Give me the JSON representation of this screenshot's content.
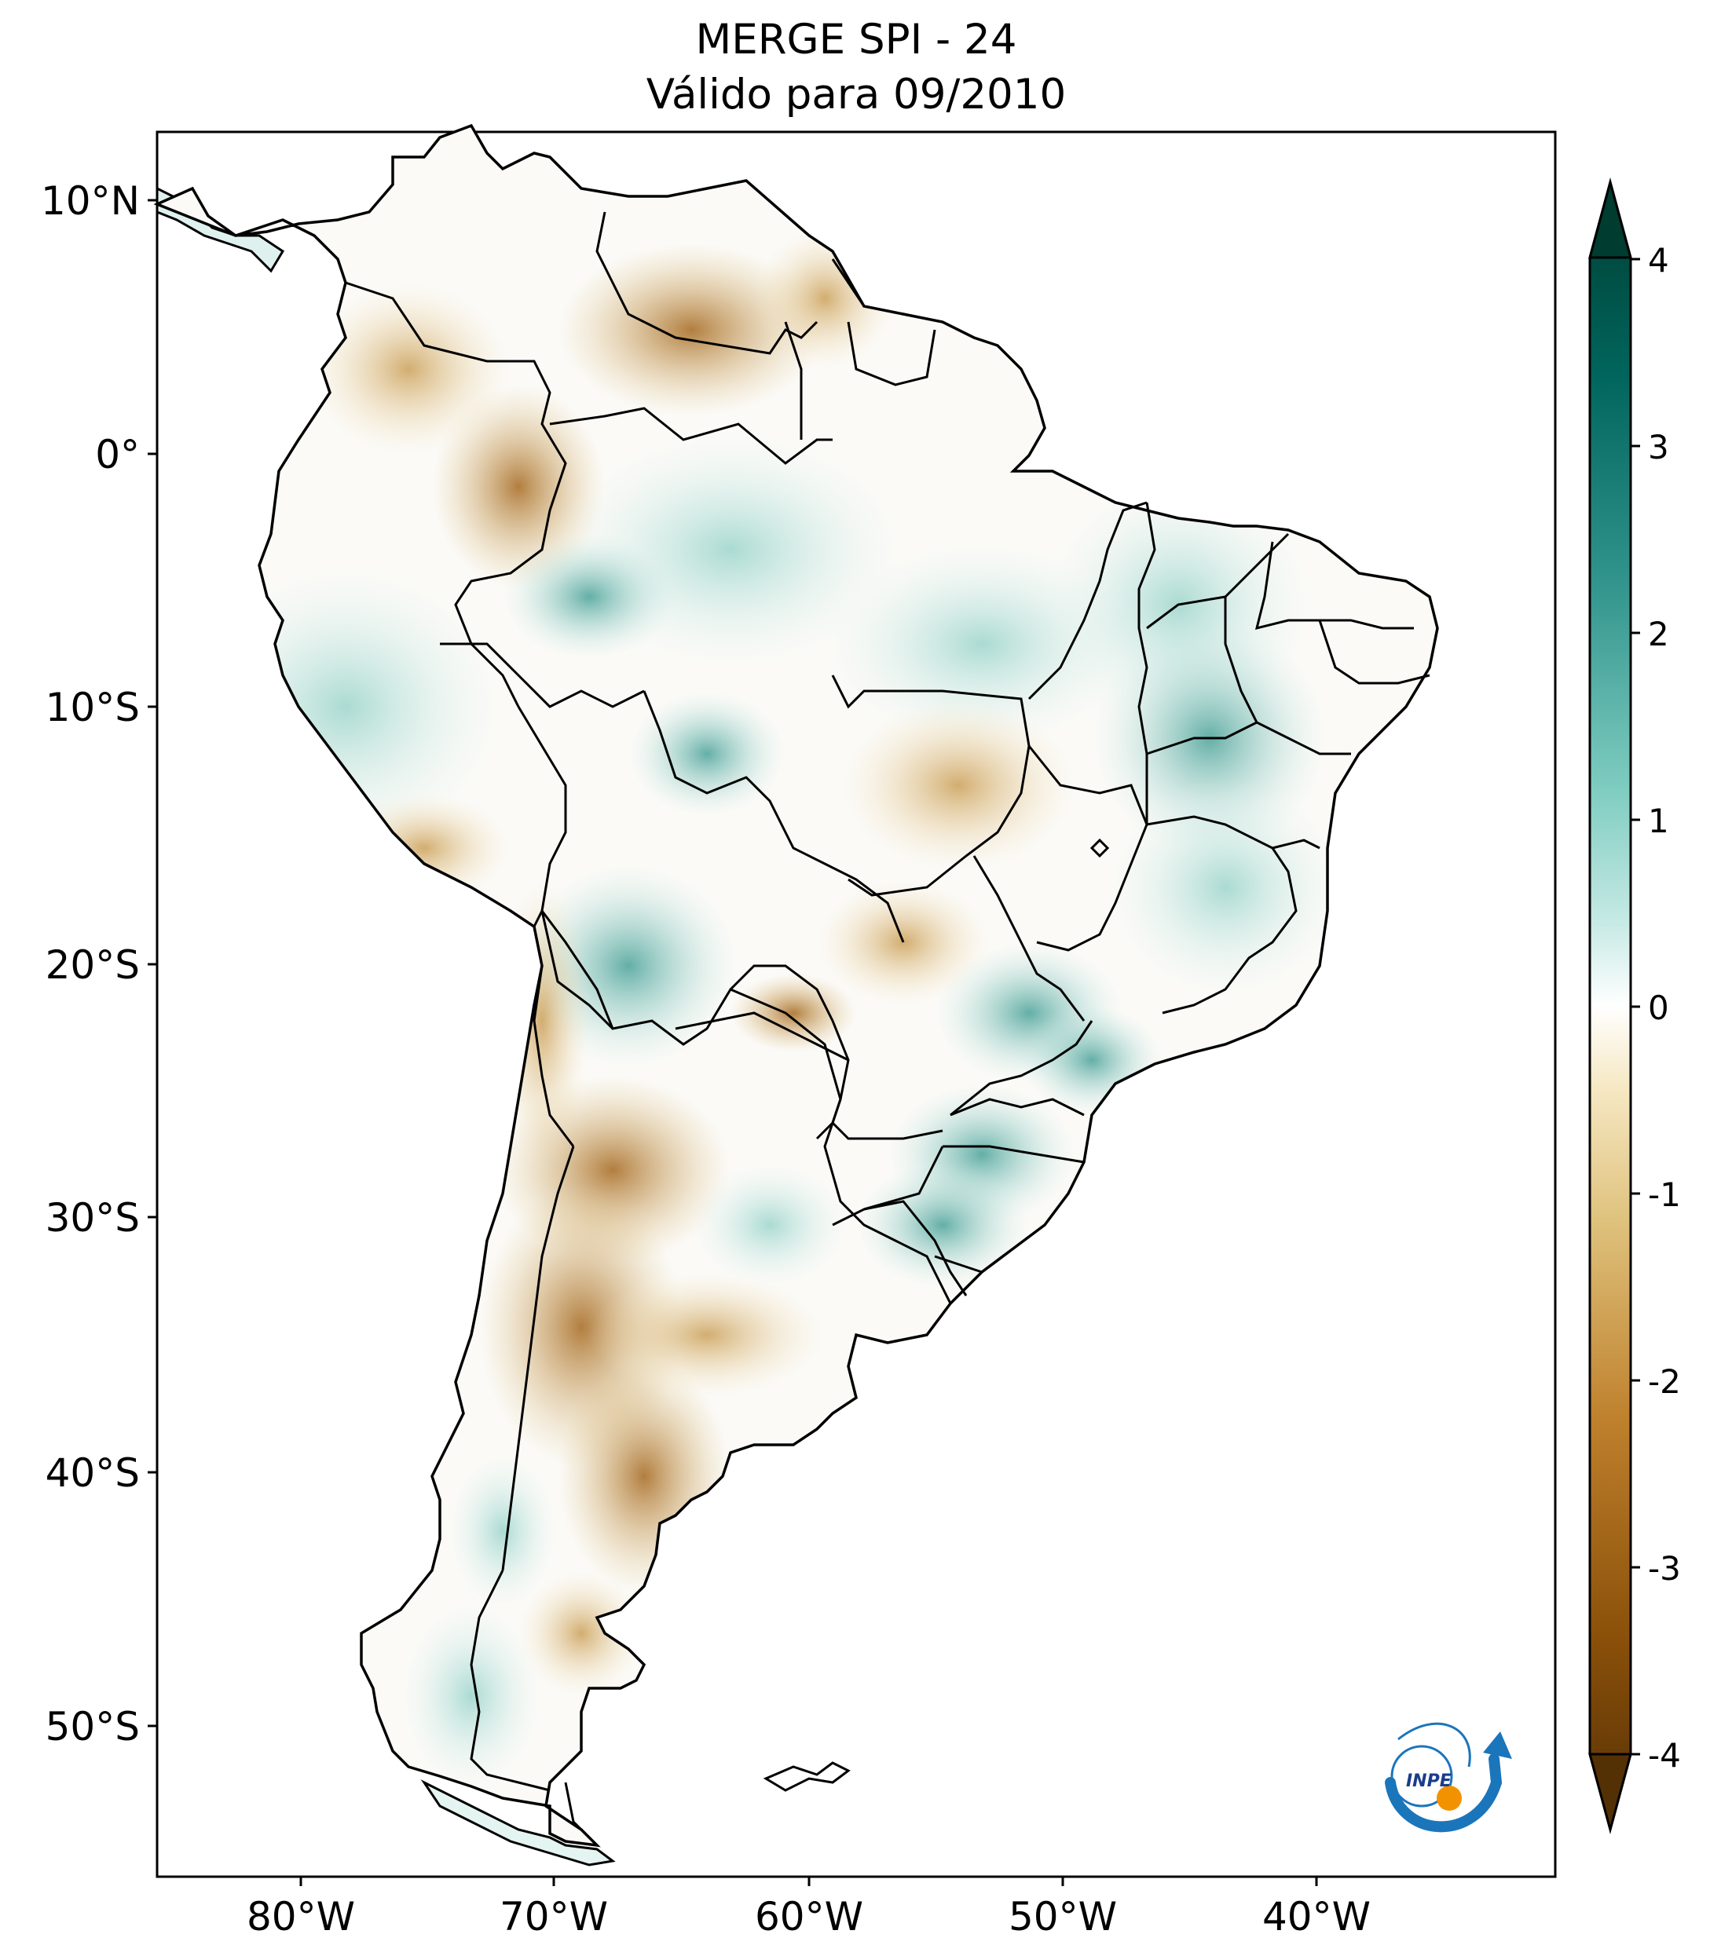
{
  "title": {
    "line1": "MERGE   SPI - 24",
    "line2": "Válido para 09/2010"
  },
  "map": {
    "region": "South America",
    "lat_ticks": [
      "10°N",
      "0°",
      "10°S",
      "20°S",
      "30°S",
      "40°S",
      "50°S"
    ],
    "lon_ticks": [
      "80°W",
      "70°W",
      "60°W",
      "50°W",
      "40°W"
    ],
    "colors": {
      "land_dry_strong": "#543005",
      "land_dry": "#bf812d",
      "land_dry_light": "#dfc27d",
      "neutral": "#ffffff",
      "land_wet_light": "#c7eae5",
      "land_wet": "#35978f",
      "land_wet_strong": "#003c30",
      "border": "#000000"
    }
  },
  "colorbar": {
    "labels": [
      "4",
      "3",
      "2",
      "1",
      "0",
      "-1",
      "-2",
      "-3",
      "-4"
    ]
  },
  "logo": {
    "text": "INPE"
  }
}
